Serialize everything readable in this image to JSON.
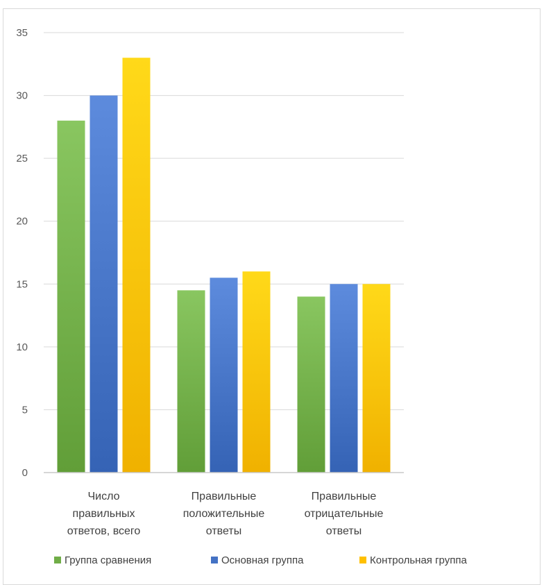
{
  "chart_data": {
    "type": "bar",
    "categories": [
      [
        "Число",
        "правильных",
        "ответов, всего"
      ],
      [
        "Правильные",
        "положительные",
        "ответы"
      ],
      [
        "Правильные",
        "отрицательные",
        "ответы"
      ]
    ],
    "series": [
      {
        "name": "Группа сравнения",
        "color": "#70ad47",
        "values": [
          28,
          14.5,
          14
        ]
      },
      {
        "name": "Основная группа",
        "color": "#4472c4",
        "values": [
          30,
          15.5,
          15
        ]
      },
      {
        "name": "Контрольная группа",
        "color": "#ffc000",
        "values": [
          33,
          16,
          15
        ]
      }
    ],
    "yticks": [
      0,
      5,
      10,
      15,
      20,
      25,
      30,
      35
    ],
    "ylim": [
      0,
      35
    ],
    "grid": true,
    "legend_position": "bottom"
  }
}
